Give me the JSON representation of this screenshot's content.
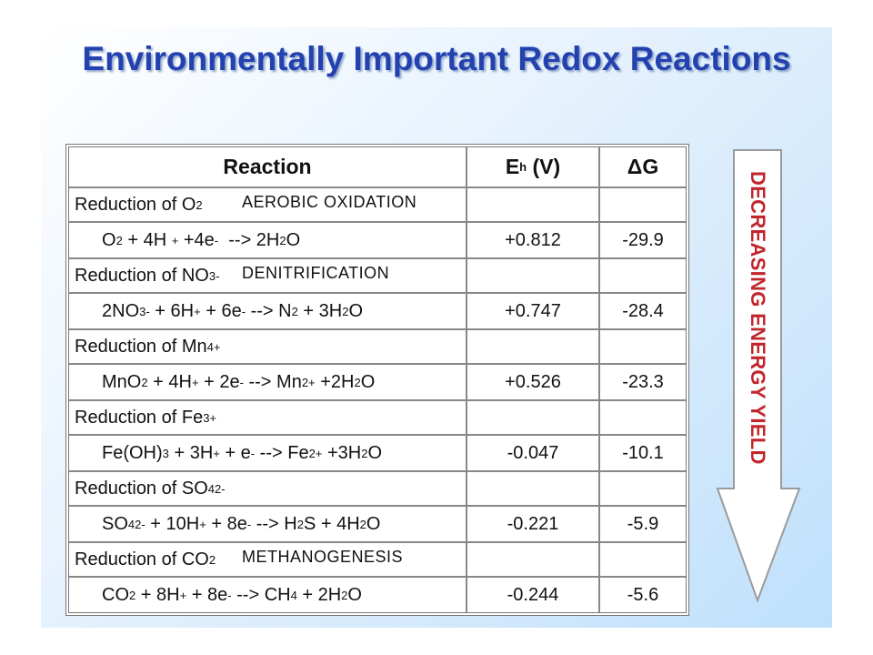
{
  "title": "Environmentally Important Redox Reactions",
  "table": {
    "header": [
      [
        {
          "text": "Reaction"
        }
      ],
      [
        {
          "text": "E"
        },
        {
          "sub": "h"
        },
        {
          "text": " (V)"
        }
      ],
      [
        {
          "text": "ΔG"
        }
      ]
    ],
    "rows": [
      {
        "heading": [
          {
            "text": "Reduction of O"
          },
          {
            "sub": "2"
          }
        ],
        "annotation": "AEROBIC OXIDATION",
        "equation": [
          {
            "text": "O"
          },
          {
            "sub": "2"
          },
          {
            "text": " + 4H "
          },
          {
            "sup": "+"
          },
          {
            "text": " +4e"
          },
          {
            "sup": "-"
          },
          {
            "text": "  --> 2H"
          },
          {
            "sub": "2"
          },
          {
            "text": "O"
          }
        ],
        "eh": "+0.812",
        "dg": "-29.9"
      },
      {
        "heading": [
          {
            "text": "Reduction of NO"
          },
          {
            "sub": "3"
          },
          {
            "sup": "-"
          }
        ],
        "annotation": "DENITRIFICATION",
        "equation": [
          {
            "text": "2NO"
          },
          {
            "sub": "3"
          },
          {
            "sup": "-"
          },
          {
            "text": " + 6H"
          },
          {
            "sup": "+"
          },
          {
            "text": " + 6e"
          },
          {
            "sup": "-"
          },
          {
            "text": " --> N"
          },
          {
            "sub": "2"
          },
          {
            "text": " + 3H"
          },
          {
            "sub": "2"
          },
          {
            "text": "O"
          }
        ],
        "eh": "+0.747",
        "dg": "-28.4"
      },
      {
        "heading": [
          {
            "text": "Reduction of Mn"
          },
          {
            "sup": "4+"
          }
        ],
        "equation": [
          {
            "text": "MnO"
          },
          {
            "sub": "2"
          },
          {
            "text": " + 4H"
          },
          {
            "sup": "+"
          },
          {
            "text": " + 2e"
          },
          {
            "sup": "-"
          },
          {
            "text": " --> Mn"
          },
          {
            "sup": "2+"
          },
          {
            "text": " +2H"
          },
          {
            "sub": "2"
          },
          {
            "text": "O"
          }
        ],
        "eh": "+0.526",
        "dg": "-23.3"
      },
      {
        "heading": [
          {
            "text": "Reduction of Fe"
          },
          {
            "sup": "3+"
          }
        ],
        "equation": [
          {
            "text": "Fe(OH)"
          },
          {
            "sub": "3"
          },
          {
            "text": " + 3H"
          },
          {
            "sup": "+"
          },
          {
            "text": " + e"
          },
          {
            "sup": "-"
          },
          {
            "text": " --> Fe"
          },
          {
            "sup": "2+"
          },
          {
            "text": " +3H"
          },
          {
            "sub": "2"
          },
          {
            "text": "O"
          }
        ],
        "eh": "-0.047",
        "dg": "-10.1"
      },
      {
        "heading": [
          {
            "text": "Reduction of SO"
          },
          {
            "sub": "4"
          },
          {
            "sup": "2-"
          }
        ],
        "equation": [
          {
            "text": "SO"
          },
          {
            "sub": "4"
          },
          {
            "sup": "2-"
          },
          {
            "text": " + 10H"
          },
          {
            "sup": "+"
          },
          {
            "text": " + 8e"
          },
          {
            "sup": "-"
          },
          {
            "text": " --> H"
          },
          {
            "sub": "2"
          },
          {
            "text": "S + 4H"
          },
          {
            "sub": "2"
          },
          {
            "text": "O"
          }
        ],
        "eh": "-0.221",
        "dg": "-5.9"
      },
      {
        "heading": [
          {
            "text": "Reduction of CO"
          },
          {
            "sub": "2"
          }
        ],
        "annotation": "METHANOGENESIS",
        "equation": [
          {
            "text": "CO"
          },
          {
            "sub": "2"
          },
          {
            "text": " + 8H"
          },
          {
            "sup": "+"
          },
          {
            "text": " + 8e"
          },
          {
            "sup": "-"
          },
          {
            "text": " --> CH"
          },
          {
            "sub": "4"
          },
          {
            "text": " + 2H"
          },
          {
            "sub": "2"
          },
          {
            "text": "O"
          }
        ],
        "eh": "-0.244",
        "dg": "-5.6"
      }
    ]
  },
  "arrow_label": "DECREASING ENERGY YIELD"
}
